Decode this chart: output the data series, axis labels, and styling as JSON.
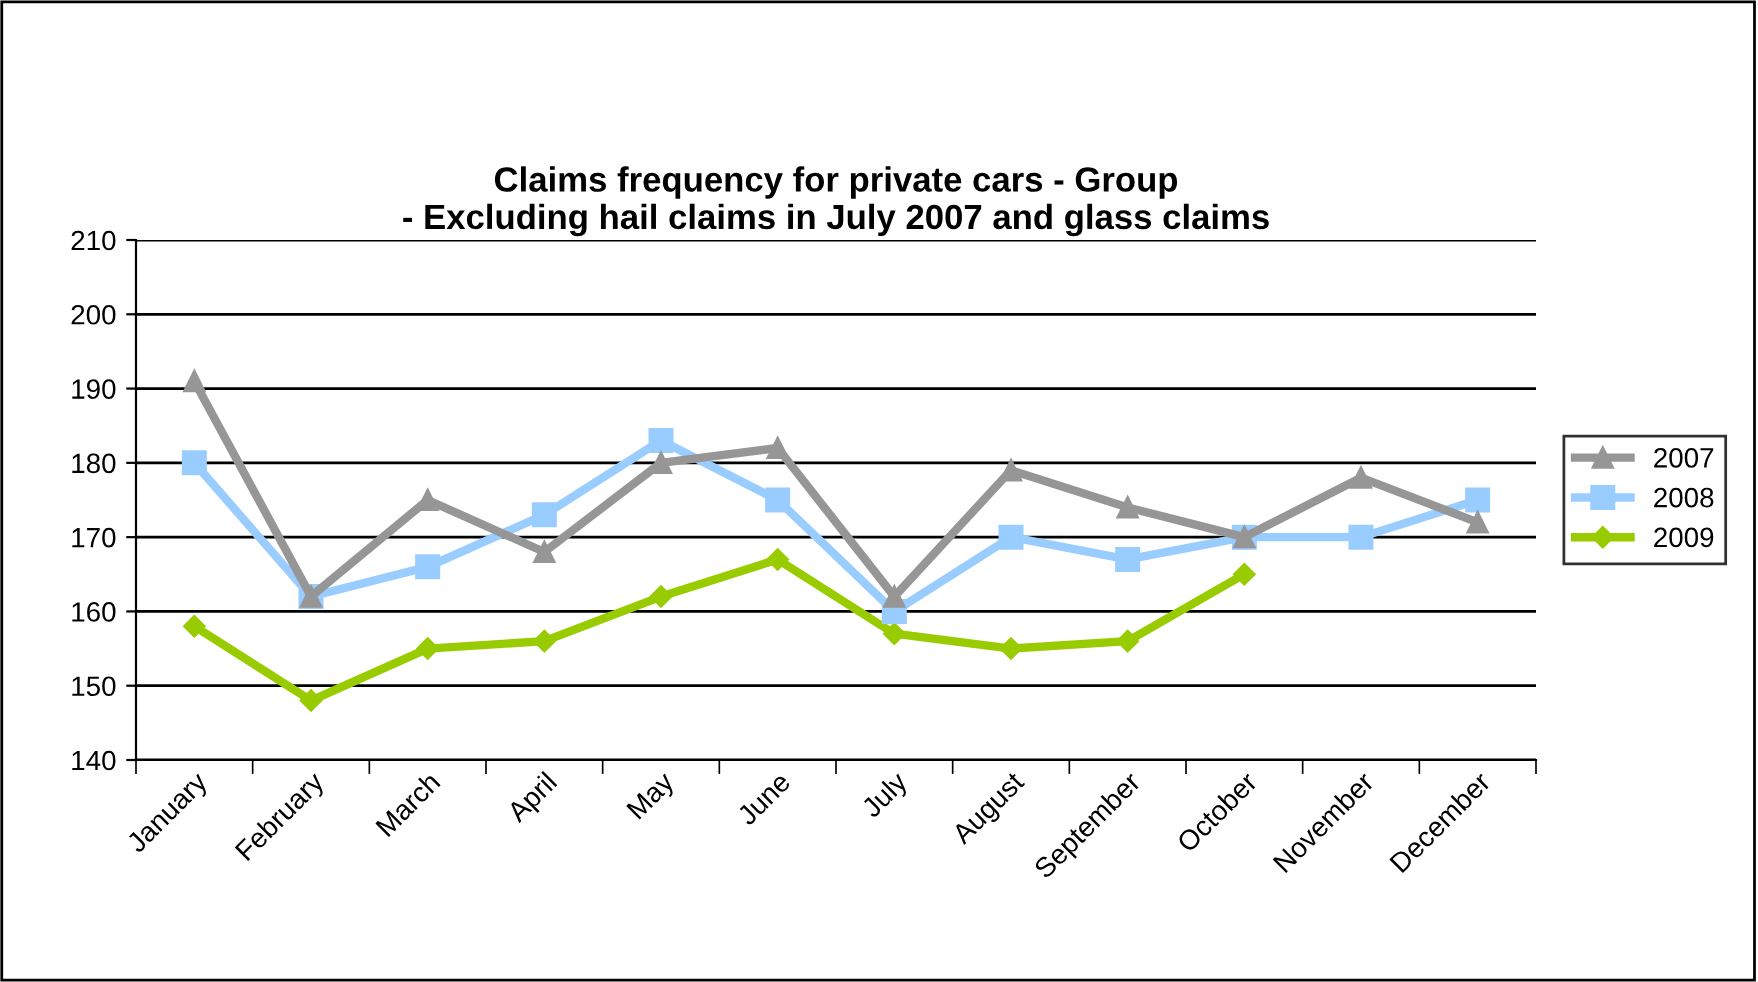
{
  "chart_data": {
    "type": "line",
    "title": "Claims frequency for private cars - Group\n- Excluding hail claims in July 2007 and glass claims",
    "categories": [
      "January",
      "February",
      "March",
      "April",
      "May",
      "June",
      "July",
      "August",
      "September",
      "October",
      "November",
      "December"
    ],
    "series": [
      {
        "name": "2007",
        "color": "#969696",
        "marker": "triangle",
        "values": [
          191,
          162,
          175,
          168,
          180,
          182,
          162,
          179,
          174,
          170,
          178,
          172
        ]
      },
      {
        "name": "2008",
        "color": "#99ccff",
        "marker": "square",
        "values": [
          180,
          162,
          166,
          173,
          183,
          175,
          160,
          170,
          167,
          170,
          170,
          175
        ]
      },
      {
        "name": "2009",
        "color": "#99cc00",
        "marker": "diamond",
        "values": [
          158,
          148,
          155,
          156,
          162,
          167,
          157,
          155,
          156,
          165,
          null,
          null
        ]
      }
    ],
    "ylim": [
      140,
      210
    ],
    "yticks": [
      140,
      150,
      160,
      170,
      180,
      190,
      200,
      210
    ],
    "grid": "y",
    "legend": "right",
    "line_style": "solid"
  }
}
